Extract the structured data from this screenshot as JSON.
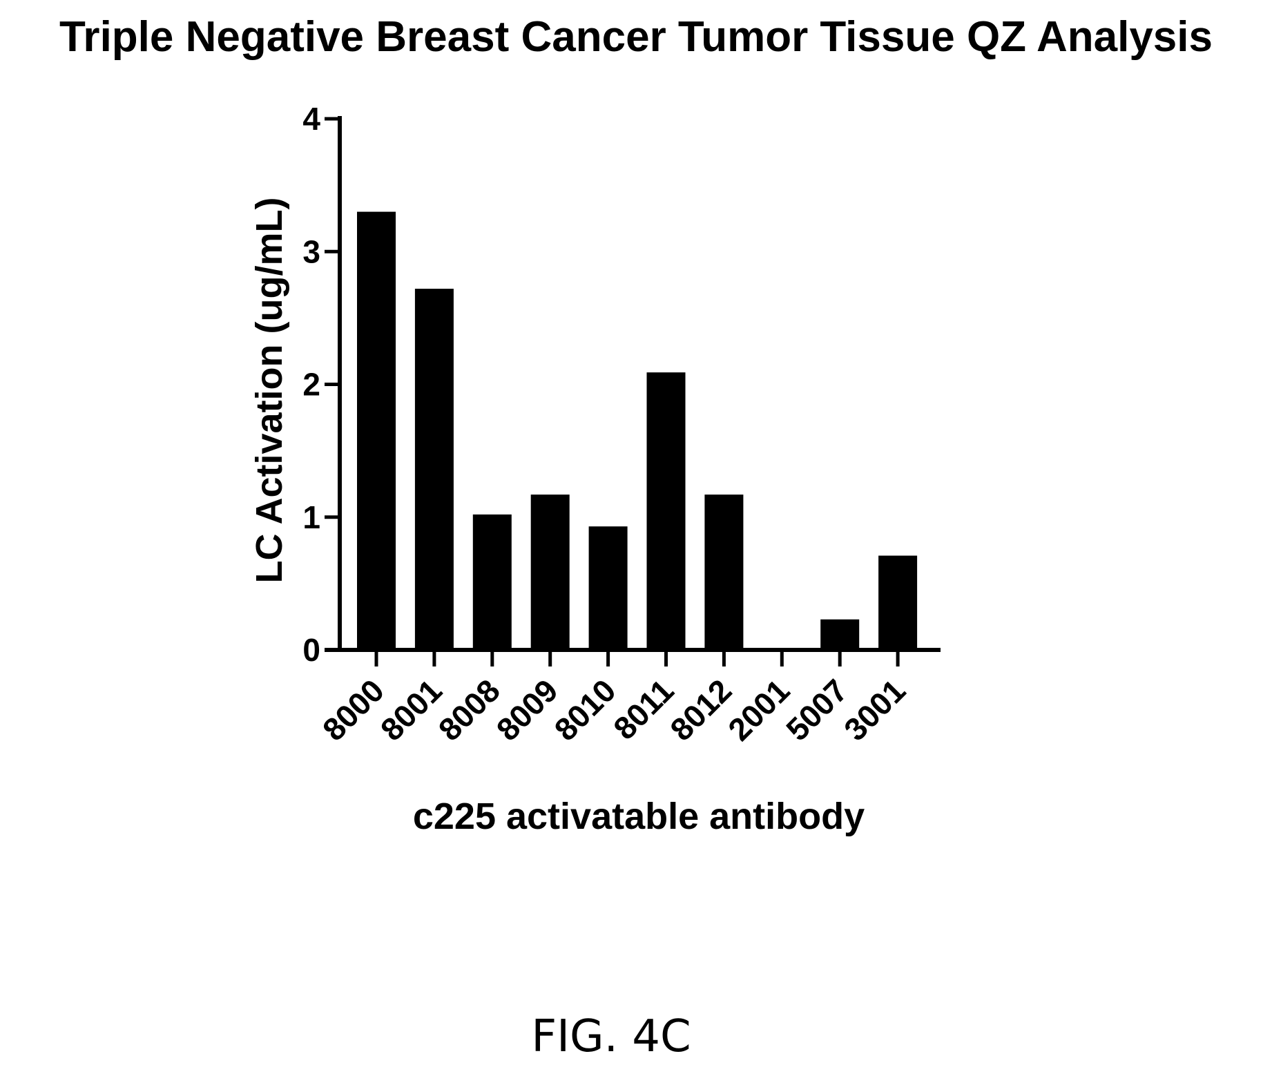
{
  "chart_data": {
    "type": "bar",
    "title": "Triple Negative Breast Cancer Tumor Tissue QZ Analysis",
    "xlabel": "c225 activatable antibody",
    "ylabel": "LC Activation (ug/mL)",
    "categories": [
      "8000",
      "8001",
      "8008",
      "8009",
      "8010",
      "8011",
      "8012",
      "2001",
      "5007",
      "3001"
    ],
    "values": [
      3.3,
      2.72,
      1.02,
      1.17,
      0.93,
      2.09,
      1.17,
      0.0,
      0.23,
      0.71
    ],
    "ylim": [
      0,
      4
    ],
    "yticks": [
      "0",
      "1",
      "2",
      "3",
      "4"
    ],
    "grid": false,
    "bar_color": "#000000"
  },
  "figure": {
    "caption": "FIG. 4C"
  }
}
